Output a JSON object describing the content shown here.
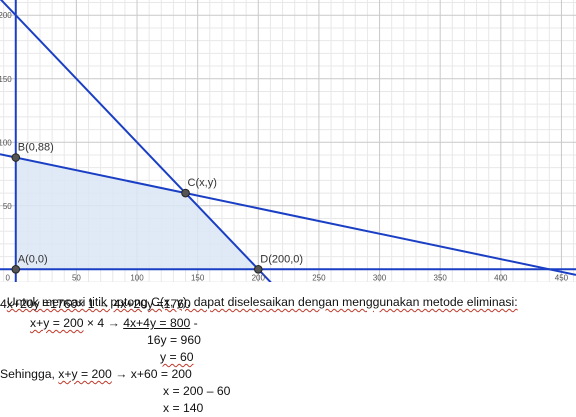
{
  "chart_data": {
    "type": "line",
    "x_ticks": [
      "0",
      "50",
      "100",
      "150",
      "200",
      "250",
      "300",
      "350",
      "400",
      "450"
    ],
    "y_ticks": [
      "50",
      "100",
      "150",
      "200"
    ],
    "xlim": [
      -13,
      462
    ],
    "ylim": [
      -10,
      212
    ],
    "grid": true,
    "lines": [
      {
        "equation": "4x+20y=1760",
        "points": [
          [
            -13,
            90.6
          ],
          [
            462,
            -4.4
          ]
        ],
        "color": "#1a3fc4"
      },
      {
        "equation": "x+y=200",
        "points": [
          [
            -13,
            213
          ],
          [
            222,
            -22
          ]
        ],
        "color": "#1a3fc4"
      },
      {
        "equation": "y=0",
        "points": [
          [
            -13,
            0
          ],
          [
            462,
            0
          ]
        ],
        "color": "#1a3fc4"
      },
      {
        "equation": "x=0",
        "points": [
          [
            0,
            -10
          ],
          [
            0,
            212
          ]
        ],
        "color": "#1a3fc4"
      }
    ],
    "feasible_region": [
      [
        0,
        0
      ],
      [
        0,
        88
      ],
      [
        140,
        60
      ],
      [
        200,
        0
      ]
    ],
    "region_color": "#dbe6f5",
    "points": [
      {
        "label": "A(0,0)",
        "x": 0,
        "y": 0
      },
      {
        "label": "B(0,88)",
        "x": 0,
        "y": 88
      },
      {
        "label": "C(x,y)",
        "x": 140,
        "y": 60
      },
      {
        "label": "D(200,0)",
        "x": 200,
        "y": 0
      }
    ]
  },
  "text": {
    "line1": "Untuk mencari titik potong C(x, y), dapat diselesaikan dengan menggunakan metode eliminasi:",
    "eq1_left": "4x+20y =1760",
    "eq1_mult": "× 1",
    "eq1_right": "4x+20y =1760",
    "eq2_left": "x+y = 200",
    "eq2_mult": "× 4",
    "eq2_right": "4x+4y = 800",
    "minus": "-",
    "result1": "16y = 960",
    "result2": "y = 60",
    "sub_prefix": "Sehingga, ",
    "sub_eq": "x+y = 200",
    "sub_step": "x+60 = 200",
    "step2": "x = 200 – 60",
    "step3": "x = 140"
  }
}
